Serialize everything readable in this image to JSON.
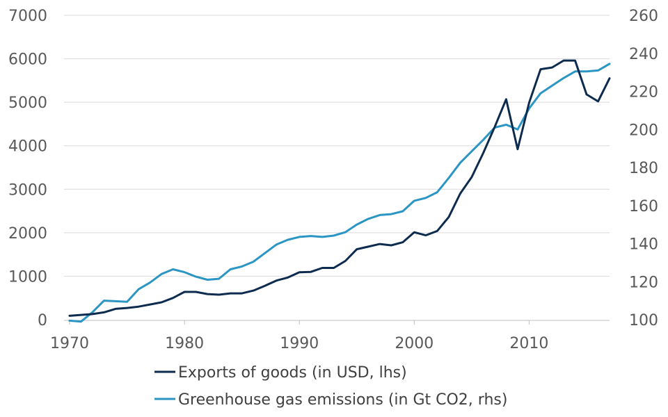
{
  "chart_data": {
    "type": "line",
    "title": "",
    "xlabel": "",
    "ylabel": "",
    "y2label": "",
    "xlim": [
      1970,
      2017
    ],
    "ylim": [
      0,
      7000
    ],
    "y2lim": [
      100,
      260
    ],
    "grid": true,
    "legend_position": "bottom",
    "x_ticks": [
      1970,
      1980,
      1990,
      2000,
      2010
    ],
    "y_ticks": [
      0,
      1000,
      2000,
      3000,
      4000,
      5000,
      6000,
      7000
    ],
    "y2_ticks": [
      100,
      120,
      140,
      160,
      180,
      200,
      220,
      240,
      260
    ],
    "x": [
      1970,
      1971,
      1972,
      1973,
      1974,
      1975,
      1976,
      1977,
      1978,
      1979,
      1980,
      1981,
      1982,
      1983,
      1984,
      1985,
      1986,
      1987,
      1988,
      1989,
      1990,
      1991,
      1992,
      1993,
      1994,
      1995,
      1996,
      1997,
      1998,
      1999,
      2000,
      2001,
      2002,
      2003,
      2004,
      2005,
      2006,
      2007,
      2008,
      2009,
      2010,
      2011,
      2012,
      2013,
      2014,
      2015,
      2016,
      2017
    ],
    "series": [
      {
        "name": "Exports of goods (in USD, lhs)",
        "axis": "left",
        "color": "#0d2b4e",
        "values": [
          90,
          110,
          130,
          170,
          250,
          270,
          300,
          350,
          400,
          500,
          640,
          640,
          590,
          575,
          605,
          605,
          670,
          780,
          900,
          970,
          1090,
          1100,
          1190,
          1190,
          1350,
          1620,
          1680,
          1740,
          1710,
          1780,
          2010,
          1940,
          2040,
          2360,
          2900,
          3280,
          3830,
          4430,
          5070,
          3920,
          4990,
          5760,
          5800,
          5960,
          5960,
          5180,
          5020,
          5550
        ]
      },
      {
        "name": "Greenhouse gas emissions (in Gt CO2, rhs)",
        "axis": "right",
        "color": "#2b95c3",
        "values": [
          99.5,
          99,
          104,
          110,
          109.7,
          109.4,
          116,
          119.5,
          124,
          126.5,
          125,
          122.6,
          121,
          121.5,
          126.5,
          128,
          130.5,
          135,
          139.5,
          142,
          143.5,
          144,
          143.5,
          144.2,
          146,
          150,
          153,
          155,
          155.5,
          157,
          162.5,
          164,
          167,
          174.5,
          182.5,
          188.5,
          194.5,
          201,
          202.5,
          200,
          211,
          219,
          223,
          227,
          230.5,
          230.5,
          231,
          234.5
        ]
      }
    ]
  }
}
